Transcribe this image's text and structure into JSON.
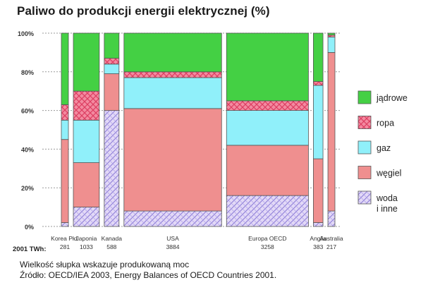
{
  "chart_data": {
    "type": "bar",
    "stacked": true,
    "variable_width": true,
    "title": "Paliwo do produkcji energii elektrycznej (%)",
    "ylim": [
      0,
      100
    ],
    "yticks": [
      "0%",
      "20%",
      "40%",
      "60%",
      "80%",
      "100%"
    ],
    "width_label": "2001 TWh:",
    "categories": [
      {
        "name": "Korea Płd.",
        "twh": "281"
      },
      {
        "name": "Japonia",
        "twh": "1033"
      },
      {
        "name": "Kanada",
        "twh": "588"
      },
      {
        "name": "USA",
        "twh": "3884"
      },
      {
        "name": "Europa OECD",
        "twh": "3258"
      },
      {
        "name": "Anglia",
        "twh": "383"
      },
      {
        "name": "Australia",
        "twh": "217"
      }
    ],
    "series": [
      {
        "name": "woda\ni inne",
        "key": "woda",
        "color": "#d8ccf0",
        "pattern": true,
        "values": [
          2,
          10,
          60,
          8,
          16,
          2,
          8
        ]
      },
      {
        "name": "węgiel",
        "key": "wegiel",
        "color": "#ef8f8f",
        "values": [
          43,
          23,
          19,
          53,
          26,
          33,
          82
        ]
      },
      {
        "name": "gaz",
        "key": "gaz",
        "color": "#90f0fa",
        "values": [
          10,
          22,
          5,
          16,
          18,
          38,
          8
        ]
      },
      {
        "name": "ropa",
        "key": "ropa",
        "color": "#f0788c",
        "pattern": true,
        "values": [
          8,
          15,
          3,
          3,
          5,
          2,
          1
        ]
      },
      {
        "name": "jądrowe",
        "key": "jadrowe",
        "color": "#44d044",
        "values": [
          37,
          30,
          13,
          20,
          35,
          25,
          1
        ]
      }
    ],
    "legend_order": [
      "jadrowe",
      "ropa",
      "gaz",
      "wegiel",
      "woda"
    ],
    "legend_position": "right",
    "grid": true
  },
  "notes": {
    "line1": "Wielkość słupka wskazuje produkowaną moc",
    "line2": "Źródło: OECD/IEA 2003, Energy Balances of OECD Countries 2001."
  }
}
